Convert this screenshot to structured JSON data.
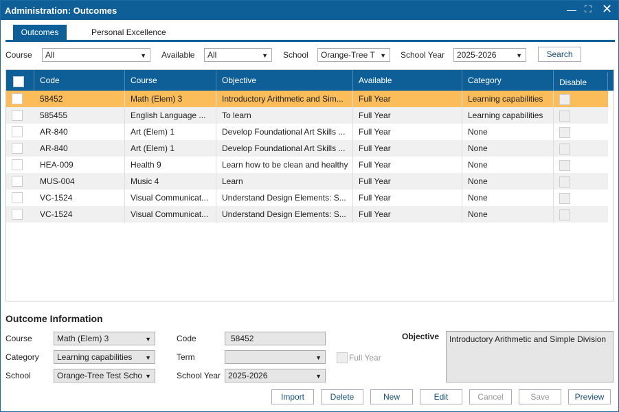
{
  "window": {
    "title": "Administration: Outcomes"
  },
  "tabs": [
    "Outcomes",
    "Personal Excellence"
  ],
  "filters": {
    "course_label": "Course",
    "course_value": "All",
    "available_label": "Available",
    "available_value": "All",
    "school_label": "School",
    "school_value": "Orange-Tree T",
    "year_label": "School Year",
    "year_value": "2025-2026",
    "search": "Search"
  },
  "table": {
    "columns": [
      "Code",
      "Course",
      "Objective",
      "Available",
      "Category",
      "Disable"
    ],
    "rows": [
      [
        "58452",
        "Math (Elem) 3",
        "Introductory Arithmetic and Sim...",
        "Full Year",
        "Learning capabilities"
      ],
      [
        "585455",
        "English Language ...",
        "To learn",
        "Full Year",
        "Learning capabilities"
      ],
      [
        "AR-840",
        "Art (Elem) 1",
        "Develop Foundational Art Skills ...",
        "Full Year",
        "None"
      ],
      [
        "AR-840",
        "Art (Elem) 1",
        "Develop Foundational Art Skills ...",
        "Full Year",
        "None"
      ],
      [
        "HEA-009",
        "Health 9",
        "Learn how to be clean and healthy",
        "Full Year",
        "None"
      ],
      [
        "MUS-004",
        "Music 4",
        "Learn",
        "Full Year",
        "None"
      ],
      [
        "VC-1524",
        "Visual Communicat...",
        "Understand Design Elements: S...",
        "Full Year",
        "None"
      ],
      [
        "VC-1524",
        "Visual Communicat...",
        "Understand Design Elements: S...",
        "Full Year",
        "None"
      ]
    ]
  },
  "info": {
    "heading": "Outcome Information",
    "course_label": "Course",
    "course_value": "Math (Elem) 3",
    "category_label": "Category",
    "category_value": "Learning capabilities",
    "school_label": "School",
    "school_value": "Orange-Tree Test Scho",
    "code_label": "Code",
    "code_value": "58452",
    "term_label": "Term",
    "full_year": "Full Year",
    "year_label": "School Year",
    "year_value": "2025-2026",
    "objective_label": "Objective",
    "objective_value": "Introductory Arithmetic and Simple Division"
  },
  "buttons": [
    "Import",
    "Delete",
    "New",
    "Edit",
    "Cancel",
    "Save",
    "Preview"
  ]
}
